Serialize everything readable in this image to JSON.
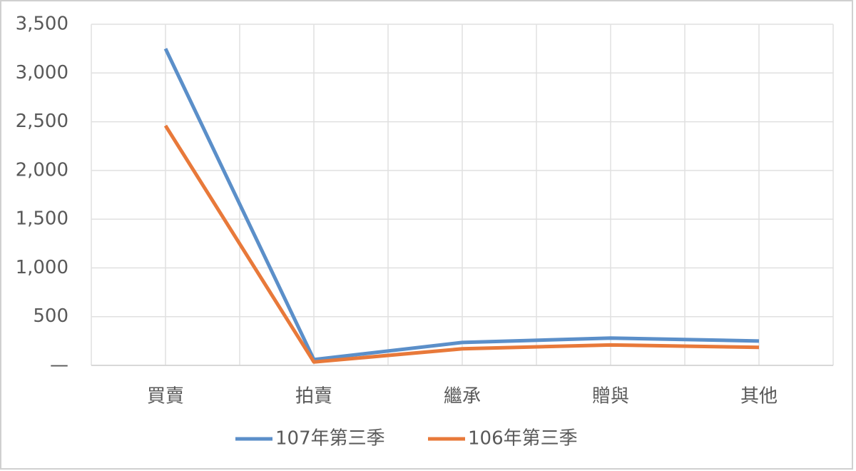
{
  "chart_data": {
    "type": "line",
    "categories": [
      "買賣",
      "拍賣",
      "繼承",
      "贈與",
      "其他"
    ],
    "series": [
      {
        "name": "107年第三季",
        "color": "#5b8fc9",
        "values": [
          3250,
          60,
          235,
          280,
          250
        ]
      },
      {
        "name": "106年第三季",
        "color": "#e8793a",
        "values": [
          2460,
          35,
          170,
          210,
          185
        ]
      }
    ],
    "ylim": [
      0,
      3500
    ],
    "yticks": [
      {
        "value": 0,
        "label": "—"
      },
      {
        "value": 500,
        "label": "500"
      },
      {
        "value": 1000,
        "label": "1,000"
      },
      {
        "value": 1500,
        "label": "1,500"
      },
      {
        "value": 2000,
        "label": "2,000"
      },
      {
        "value": 2500,
        "label": "2,500"
      },
      {
        "value": 3000,
        "label": "3,000"
      },
      {
        "value": 3500,
        "label": "3,500"
      }
    ],
    "grid": true,
    "legend": "bottom"
  }
}
